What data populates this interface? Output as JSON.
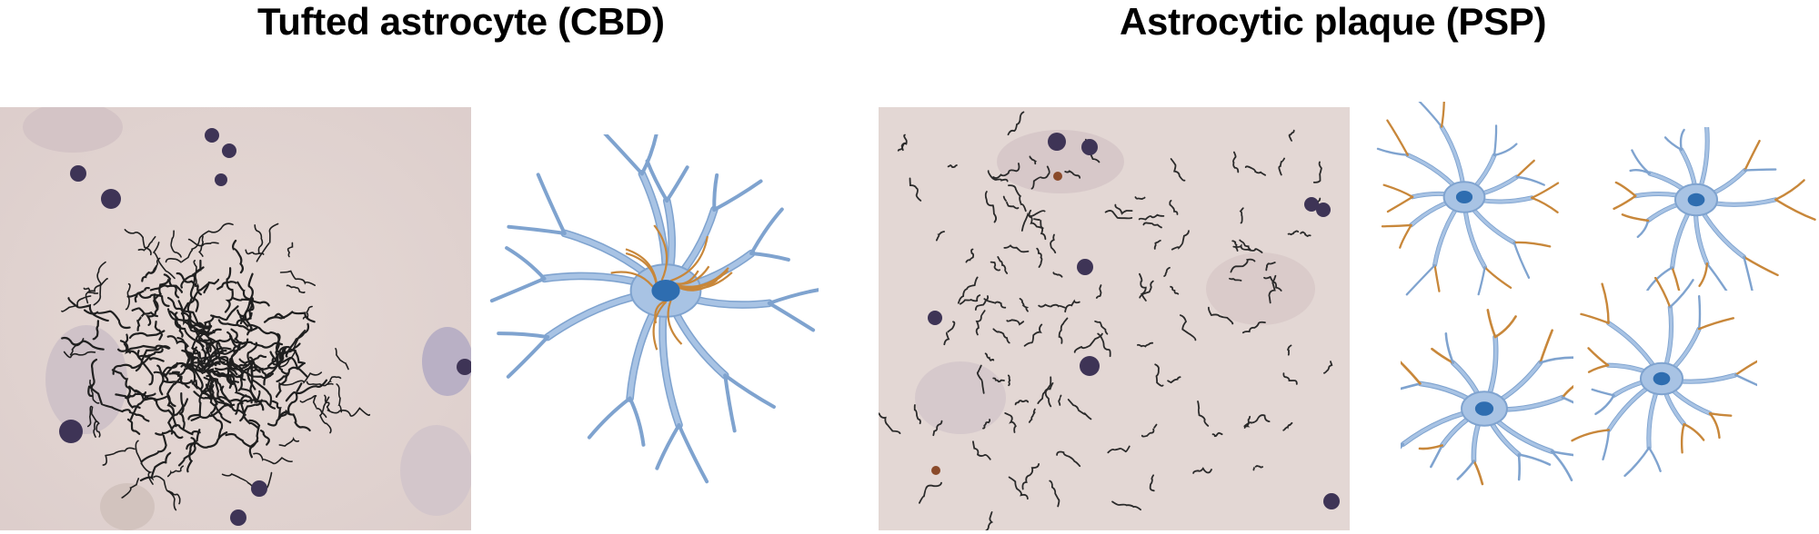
{
  "figure": {
    "left_panel": {
      "title": "Tufted astrocyte (CBD)"
    },
    "right_panel": {
      "title": "Astrocytic plaque (PSP)"
    }
  },
  "colors": {
    "background": "#ffffff",
    "tissue": "#e3d6d3",
    "tau_fibers": "#1f1f1f",
    "nucleus_stain": "#3e3456",
    "astrocyte_body": "#a8c3e4",
    "astrocyte_outline": "#7fa3cf",
    "astrocyte_nucleus": "#2e6db0",
    "tau_accumulation": "#c8873a"
  }
}
